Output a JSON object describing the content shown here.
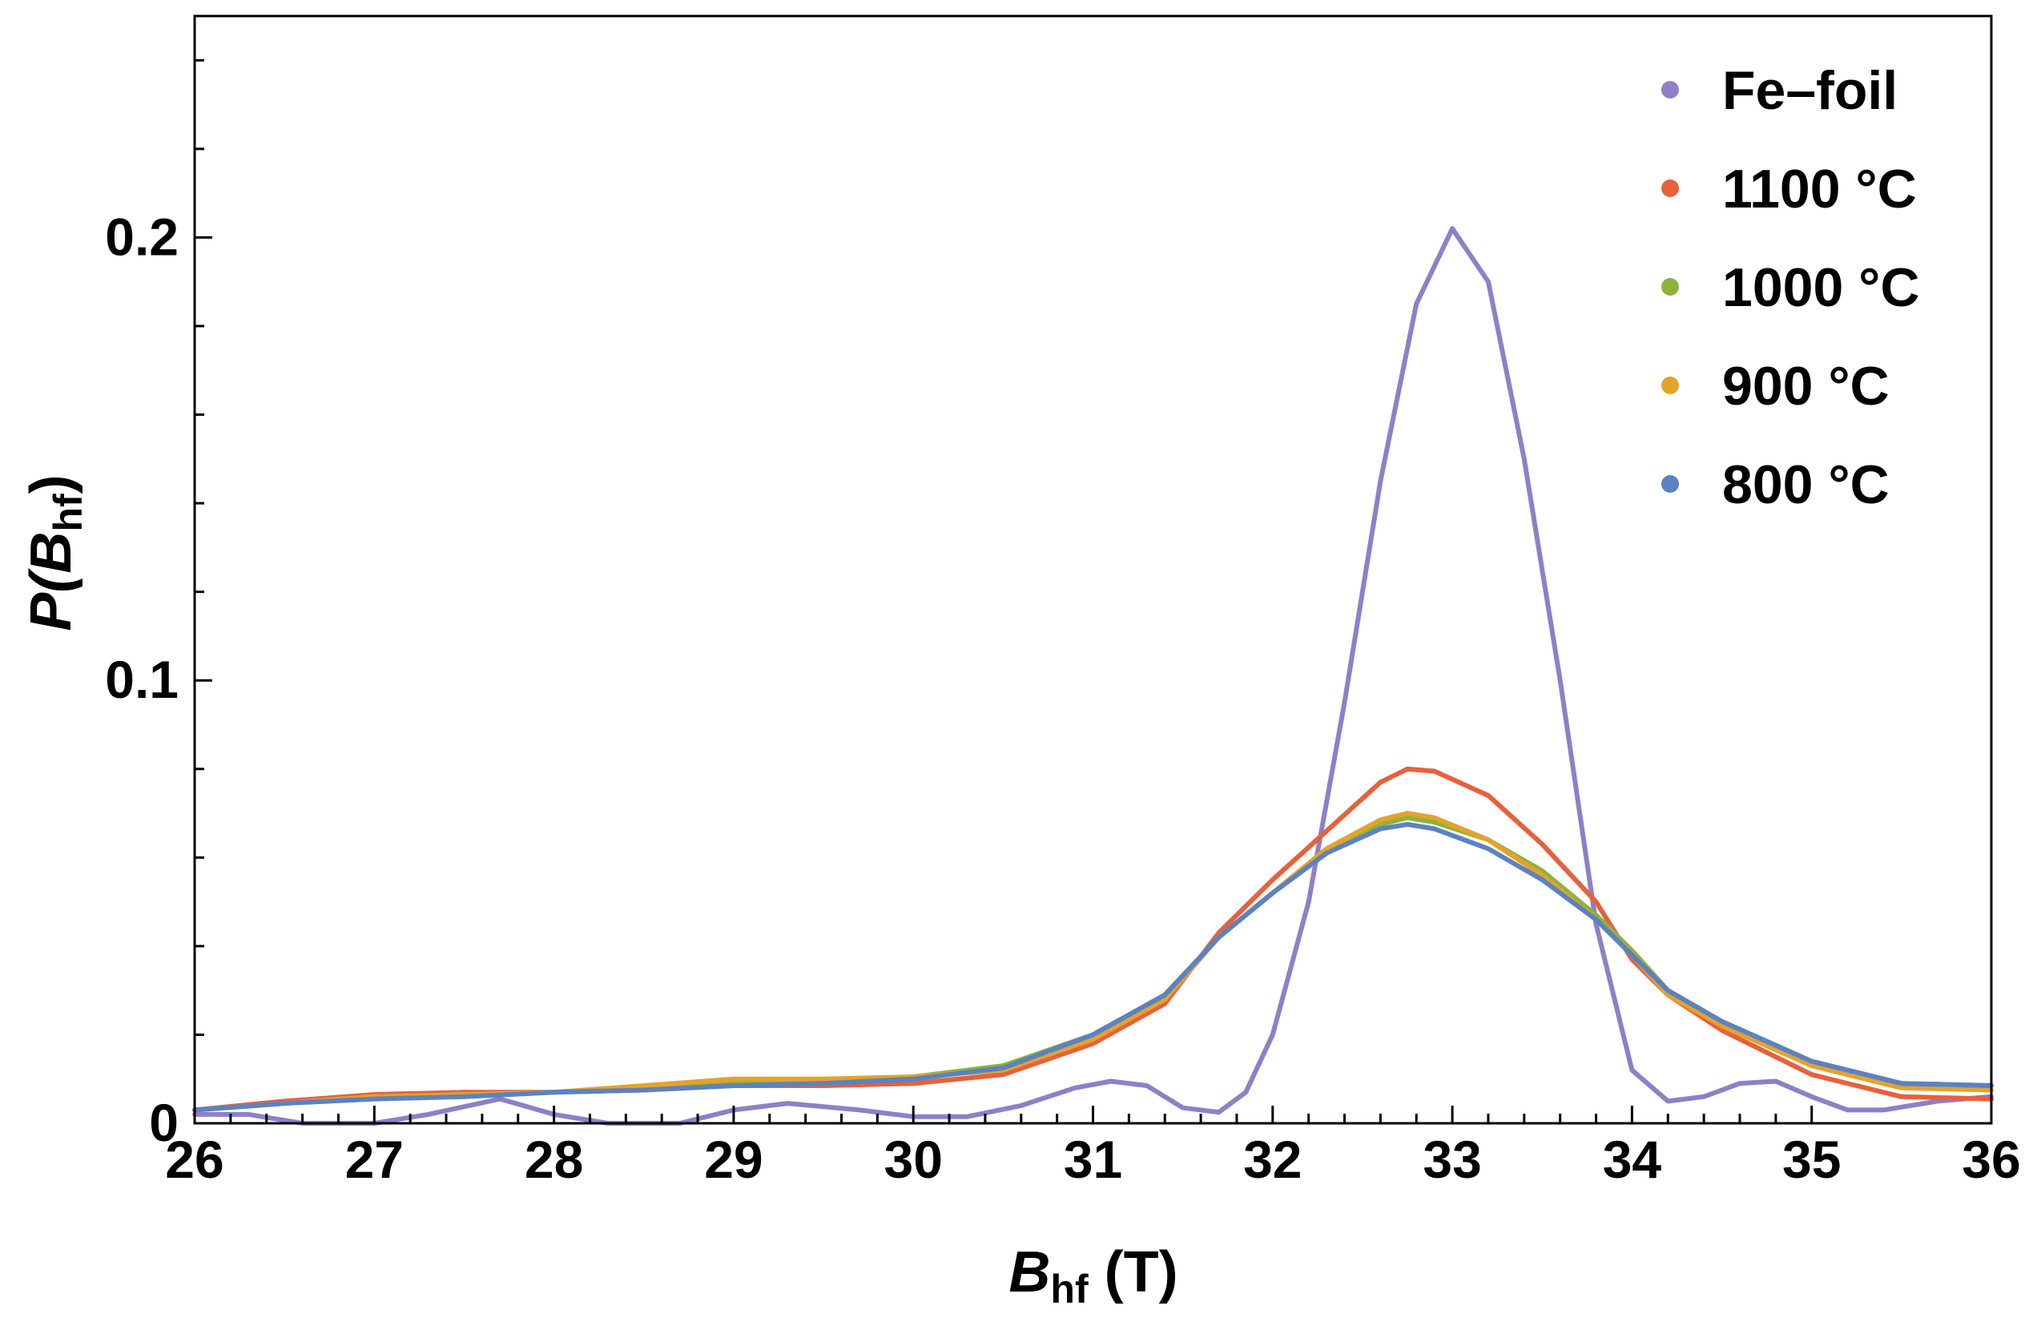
{
  "chart_data": {
    "type": "line",
    "xlabel": {
      "main": "B",
      "sub": "hf",
      "unit": " (T)"
    },
    "ylabel": {
      "pre": "P(",
      "main": "B",
      "sub": "hf",
      "post": ")"
    },
    "xlim": [
      26,
      36
    ],
    "ylim": [
      0,
      0.25
    ],
    "x_ticks": [
      26,
      27,
      28,
      29,
      30,
      31,
      32,
      33,
      34,
      35,
      36
    ],
    "x_tick_labels": [
      "26",
      "27",
      "28",
      "29",
      "30",
      "31",
      "32",
      "33",
      "34",
      "35",
      "36"
    ],
    "y_ticks": [
      0,
      0.1,
      0.2
    ],
    "y_tick_labels": [
      "0",
      "0.1",
      "0.2"
    ],
    "grid": false,
    "legend_position": "top-right",
    "series": [
      {
        "name": "Fe–foil",
        "color": "#8f7fc8",
        "points": [
          [
            26,
            0.002
          ],
          [
            26.3,
            0.002
          ],
          [
            26.6,
            0.0
          ],
          [
            27,
            0.0
          ],
          [
            27.3,
            0.002
          ],
          [
            27.7,
            0.0055
          ],
          [
            28,
            0.002
          ],
          [
            28.3,
            0.0
          ],
          [
            28.7,
            0.0
          ],
          [
            29,
            0.003
          ],
          [
            29.3,
            0.0045
          ],
          [
            29.7,
            0.003
          ],
          [
            30,
            0.0015
          ],
          [
            30.3,
            0.0015
          ],
          [
            30.6,
            0.004
          ],
          [
            30.9,
            0.008
          ],
          [
            31.1,
            0.0095
          ],
          [
            31.3,
            0.0085
          ],
          [
            31.5,
            0.0035
          ],
          [
            31.7,
            0.0025
          ],
          [
            31.85,
            0.007
          ],
          [
            32,
            0.02
          ],
          [
            32.2,
            0.05
          ],
          [
            32.4,
            0.095
          ],
          [
            32.6,
            0.145
          ],
          [
            32.8,
            0.185
          ],
          [
            33,
            0.202
          ],
          [
            33.2,
            0.19
          ],
          [
            33.4,
            0.15
          ],
          [
            33.6,
            0.1
          ],
          [
            33.8,
            0.045
          ],
          [
            34,
            0.012
          ],
          [
            34.2,
            0.005
          ],
          [
            34.4,
            0.006
          ],
          [
            34.6,
            0.009
          ],
          [
            34.8,
            0.0095
          ],
          [
            35,
            0.006
          ],
          [
            35.2,
            0.003
          ],
          [
            35.4,
            0.003
          ],
          [
            35.7,
            0.005
          ],
          [
            36,
            0.006
          ]
        ]
      },
      {
        "name": "1100 °C",
        "color": "#e8603c",
        "points": [
          [
            26,
            0.003
          ],
          [
            26.5,
            0.005
          ],
          [
            27,
            0.0065
          ],
          [
            27.5,
            0.007
          ],
          [
            28,
            0.007
          ],
          [
            28.5,
            0.0075
          ],
          [
            29,
            0.0085
          ],
          [
            29.5,
            0.0085
          ],
          [
            30,
            0.009
          ],
          [
            30.5,
            0.011
          ],
          [
            31,
            0.018
          ],
          [
            31.4,
            0.027
          ],
          [
            31.7,
            0.043
          ],
          [
            32,
            0.055
          ],
          [
            32.3,
            0.066
          ],
          [
            32.6,
            0.077
          ],
          [
            32.75,
            0.08
          ],
          [
            32.9,
            0.0795
          ],
          [
            33.2,
            0.074
          ],
          [
            33.5,
            0.063
          ],
          [
            33.8,
            0.05
          ],
          [
            34,
            0.037
          ],
          [
            34.2,
            0.029
          ],
          [
            34.5,
            0.021
          ],
          [
            35,
            0.011
          ],
          [
            35.5,
            0.006
          ],
          [
            36,
            0.0055
          ]
        ]
      },
      {
        "name": "1000 °C",
        "color": "#8db33a",
        "points": [
          [
            26,
            0.003
          ],
          [
            26.5,
            0.0045
          ],
          [
            27,
            0.006
          ],
          [
            27.5,
            0.0065
          ],
          [
            28,
            0.007
          ],
          [
            28.5,
            0.008
          ],
          [
            29,
            0.009
          ],
          [
            29.5,
            0.0095
          ],
          [
            30,
            0.0105
          ],
          [
            30.5,
            0.013
          ],
          [
            31,
            0.02
          ],
          [
            31.4,
            0.029
          ],
          [
            31.7,
            0.042
          ],
          [
            32,
            0.052
          ],
          [
            32.3,
            0.061
          ],
          [
            32.6,
            0.0675
          ],
          [
            32.75,
            0.069
          ],
          [
            32.9,
            0.068
          ],
          [
            33.2,
            0.064
          ],
          [
            33.5,
            0.057
          ],
          [
            33.8,
            0.047
          ],
          [
            34,
            0.039
          ],
          [
            34.2,
            0.03
          ],
          [
            34.5,
            0.023
          ],
          [
            35,
            0.014
          ],
          [
            35.5,
            0.009
          ],
          [
            36,
            0.0085
          ]
        ]
      },
      {
        "name": "900 °C",
        "color": "#e4a32b",
        "points": [
          [
            26,
            0.003
          ],
          [
            26.5,
            0.0045
          ],
          [
            27,
            0.006
          ],
          [
            27.5,
            0.0065
          ],
          [
            28,
            0.007
          ],
          [
            28.5,
            0.0085
          ],
          [
            29,
            0.01
          ],
          [
            29.5,
            0.01
          ],
          [
            30,
            0.0105
          ],
          [
            30.5,
            0.012
          ],
          [
            31,
            0.019
          ],
          [
            31.4,
            0.028
          ],
          [
            31.7,
            0.042
          ],
          [
            32,
            0.052
          ],
          [
            32.3,
            0.062
          ],
          [
            32.6,
            0.0685
          ],
          [
            32.75,
            0.07
          ],
          [
            32.9,
            0.069
          ],
          [
            33.2,
            0.064
          ],
          [
            33.5,
            0.056
          ],
          [
            33.8,
            0.046
          ],
          [
            34,
            0.038
          ],
          [
            34.2,
            0.029
          ],
          [
            34.5,
            0.022
          ],
          [
            35,
            0.013
          ],
          [
            35.5,
            0.008
          ],
          [
            36,
            0.0075
          ]
        ]
      },
      {
        "name": "800 °C",
        "color": "#5b82c2",
        "points": [
          [
            26,
            0.003
          ],
          [
            26.5,
            0.0045
          ],
          [
            27,
            0.0055
          ],
          [
            27.5,
            0.006
          ],
          [
            28,
            0.007
          ],
          [
            28.5,
            0.0075
          ],
          [
            29,
            0.0085
          ],
          [
            29.5,
            0.009
          ],
          [
            30,
            0.01
          ],
          [
            30.5,
            0.0125
          ],
          [
            31,
            0.02
          ],
          [
            31.4,
            0.029
          ],
          [
            31.7,
            0.042
          ],
          [
            32,
            0.052
          ],
          [
            32.3,
            0.061
          ],
          [
            32.6,
            0.0665
          ],
          [
            32.75,
            0.0675
          ],
          [
            32.9,
            0.0665
          ],
          [
            33.2,
            0.062
          ],
          [
            33.5,
            0.055
          ],
          [
            33.8,
            0.046
          ],
          [
            34,
            0.038
          ],
          [
            34.2,
            0.03
          ],
          [
            34.5,
            0.023
          ],
          [
            35,
            0.014
          ],
          [
            35.5,
            0.009
          ],
          [
            36,
            0.0085
          ]
        ]
      }
    ]
  }
}
